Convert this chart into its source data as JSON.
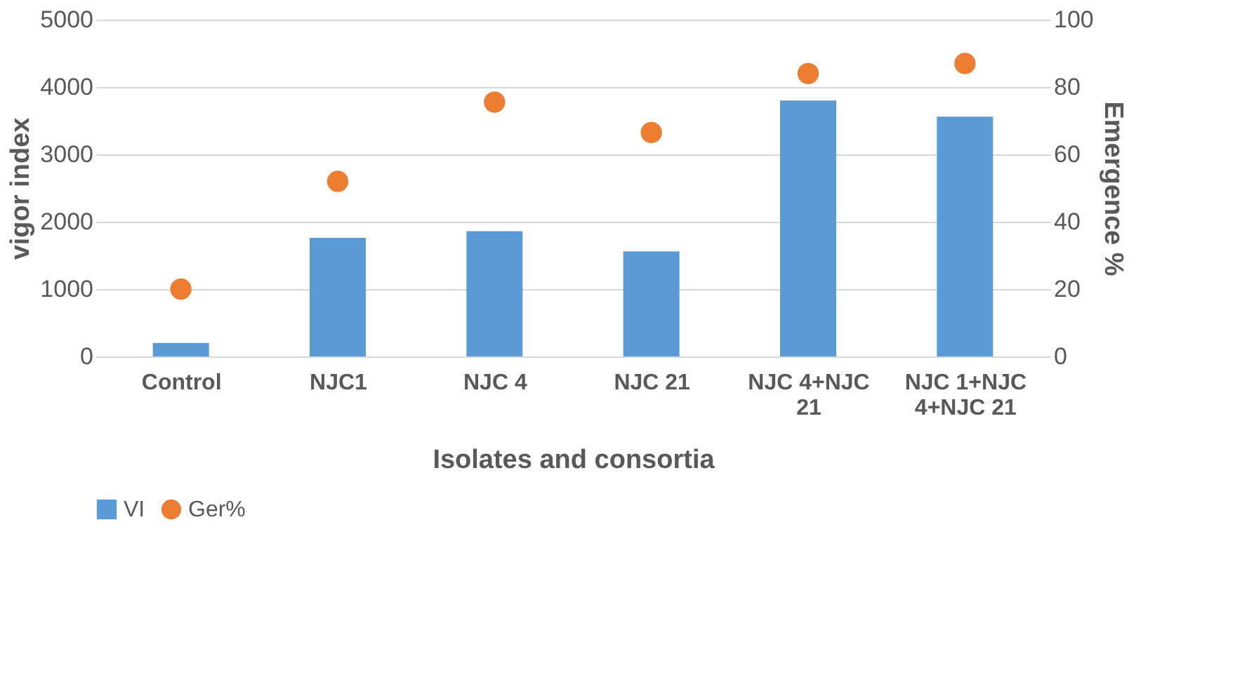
{
  "chart_data": {
    "type": "bar",
    "xlabel": "Isolates and consortia",
    "ylabel": "vigor index",
    "y2label": "Emergence %",
    "categories": [
      "Control",
      "NJC1",
      "NJC 4",
      "NJC 21",
      "NJC 4+NJC 21",
      "NJC 1+NJC 4+NJC 21"
    ],
    "series": [
      {
        "name": "VI",
        "color": "#5b9bd5",
        "values": [
          200,
          1760,
          1860,
          1560,
          3800,
          3560
        ]
      },
      {
        "name": "Ger%",
        "type": "scatter",
        "axis": "y2",
        "color": "#ed7d31",
        "marker": "circle",
        "values": [
          20,
          52,
          75.5,
          66.5,
          84,
          87
        ]
      }
    ],
    "ylim": [
      0,
      5000
    ],
    "yticks": [
      0,
      1000,
      2000,
      3000,
      4000,
      5000
    ],
    "y2lim": [
      0,
      100
    ],
    "y2ticks": [
      0,
      20,
      40,
      60,
      80,
      100
    ],
    "grid": "y",
    "legend": "bottom"
  }
}
